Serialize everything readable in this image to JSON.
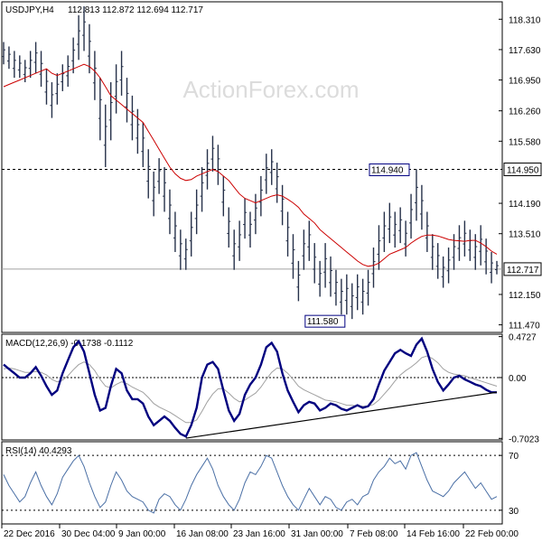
{
  "chart_data": [
    {
      "type": "line",
      "name": "price",
      "title": "USDJPY,H4",
      "ohlc_readout": "112.813 112.872 112.694 112.717",
      "watermark": "ActionForex.com",
      "ylim": [
        111.3,
        118.7
      ],
      "y_ticks": [
        "118.310",
        "117.630",
        "116.950",
        "116.260",
        "115.580",
        "114.190",
        "113.510",
        "112.150",
        "111.470"
      ],
      "x_ticks": [
        "22 Dec 2016",
        "30 Dec 04:00",
        "9 Jan 00:00",
        "16 Jan 08:00",
        "23 Jan 16:00",
        "31 Jan 00:00",
        "7 Feb 08:00",
        "14 Feb 16:00",
        "22 Feb 00:00"
      ],
      "bars": [
        {
          "x": 0,
          "high": 117.8,
          "low": 117.3
        },
        {
          "x": 1,
          "high": 117.7,
          "low": 117.2
        },
        {
          "x": 2,
          "high": 117.6,
          "low": 117.0
        },
        {
          "x": 3,
          "high": 117.5,
          "low": 117.0
        },
        {
          "x": 4,
          "high": 117.4,
          "low": 116.9
        },
        {
          "x": 5,
          "high": 117.6,
          "low": 117.0
        },
        {
          "x": 6,
          "high": 117.8,
          "low": 117.1
        },
        {
          "x": 7,
          "high": 117.6,
          "low": 116.8
        },
        {
          "x": 8,
          "high": 117.2,
          "low": 116.4
        },
        {
          "x": 9,
          "high": 116.9,
          "low": 116.1
        },
        {
          "x": 10,
          "high": 117.1,
          "low": 116.4
        },
        {
          "x": 11,
          "high": 117.3,
          "low": 116.7
        },
        {
          "x": 12,
          "high": 117.5,
          "low": 116.8
        },
        {
          "x": 13,
          "high": 117.9,
          "low": 117.1
        },
        {
          "x": 14,
          "high": 118.4,
          "low": 117.4
        },
        {
          "x": 15,
          "high": 118.6,
          "low": 117.6
        },
        {
          "x": 16,
          "high": 118.2,
          "low": 117.1
        },
        {
          "x": 17,
          "high": 117.6,
          "low": 116.5
        },
        {
          "x": 18,
          "high": 117.0,
          "low": 115.6
        },
        {
          "x": 19,
          "high": 116.4,
          "low": 115.0
        },
        {
          "x": 20,
          "high": 116.9,
          "low": 115.6
        },
        {
          "x": 21,
          "high": 117.3,
          "low": 116.2
        },
        {
          "x": 22,
          "high": 117.6,
          "low": 116.6
        },
        {
          "x": 23,
          "high": 117.0,
          "low": 116.0
        },
        {
          "x": 24,
          "high": 116.6,
          "low": 115.6
        },
        {
          "x": 25,
          "high": 116.3,
          "low": 115.3
        },
        {
          "x": 26,
          "high": 116.0,
          "low": 115.0
        },
        {
          "x": 27,
          "high": 115.4,
          "low": 114.3
        },
        {
          "x": 28,
          "high": 114.9,
          "low": 113.9
        },
        {
          "x": 29,
          "high": 115.2,
          "low": 114.4
        },
        {
          "x": 30,
          "high": 115.0,
          "low": 114.0
        },
        {
          "x": 31,
          "high": 114.5,
          "low": 113.5
        },
        {
          "x": 32,
          "high": 114.0,
          "low": 113.1
        },
        {
          "x": 33,
          "high": 113.6,
          "low": 112.7
        },
        {
          "x": 34,
          "high": 113.4,
          "low": 112.7
        },
        {
          "x": 35,
          "high": 114.0,
          "low": 113.0
        },
        {
          "x": 36,
          "high": 114.5,
          "low": 113.5
        },
        {
          "x": 37,
          "high": 115.0,
          "low": 114.0
        },
        {
          "x": 38,
          "high": 115.4,
          "low": 114.5
        },
        {
          "x": 39,
          "high": 115.7,
          "low": 114.9
        },
        {
          "x": 40,
          "high": 115.5,
          "low": 114.6
        },
        {
          "x": 41,
          "high": 114.8,
          "low": 113.9
        },
        {
          "x": 42,
          "high": 114.1,
          "low": 113.2
        },
        {
          "x": 43,
          "high": 113.6,
          "low": 112.7
        },
        {
          "x": 44,
          "high": 113.8,
          "low": 112.9
        },
        {
          "x": 45,
          "high": 114.3,
          "low": 113.4
        },
        {
          "x": 46,
          "high": 114.0,
          "low": 113.2
        },
        {
          "x": 47,
          "high": 114.4,
          "low": 113.5
        },
        {
          "x": 48,
          "high": 114.8,
          "low": 113.9
        },
        {
          "x": 49,
          "high": 115.3,
          "low": 114.4
        },
        {
          "x": 50,
          "high": 115.4,
          "low": 114.6
        },
        {
          "x": 51,
          "high": 115.1,
          "low": 114.2
        },
        {
          "x": 52,
          "high": 114.6,
          "low": 113.7
        },
        {
          "x": 53,
          "high": 114.0,
          "low": 113.0
        },
        {
          "x": 54,
          "high": 113.5,
          "low": 112.5
        },
        {
          "x": 55,
          "high": 112.9,
          "low": 112.0
        },
        {
          "x": 56,
          "high": 113.6,
          "low": 112.7
        },
        {
          "x": 57,
          "high": 113.8,
          "low": 112.9
        },
        {
          "x": 58,
          "high": 113.3,
          "low": 112.4
        },
        {
          "x": 59,
          "high": 112.9,
          "low": 112.1
        },
        {
          "x": 60,
          "high": 113.3,
          "low": 112.3
        },
        {
          "x": 61,
          "high": 113.0,
          "low": 112.1
        },
        {
          "x": 62,
          "high": 112.7,
          "low": 111.9
        },
        {
          "x": 63,
          "high": 112.5,
          "low": 111.7
        },
        {
          "x": 64,
          "high": 112.6,
          "low": 111.7
        },
        {
          "x": 65,
          "high": 112.4,
          "low": 111.6
        },
        {
          "x": 66,
          "high": 112.6,
          "low": 111.8
        },
        {
          "x": 67,
          "high": 112.5,
          "low": 111.7
        },
        {
          "x": 68,
          "high": 112.7,
          "low": 111.9
        },
        {
          "x": 69,
          "high": 113.2,
          "low": 112.3
        },
        {
          "x": 70,
          "high": 113.7,
          "low": 112.7
        },
        {
          "x": 71,
          "high": 114.0,
          "low": 113.1
        },
        {
          "x": 72,
          "high": 114.2,
          "low": 113.3
        },
        {
          "x": 73,
          "high": 114.0,
          "low": 113.2
        },
        {
          "x": 74,
          "high": 114.1,
          "low": 113.3
        },
        {
          "x": 75,
          "high": 113.8,
          "low": 113.0
        },
        {
          "x": 76,
          "high": 114.4,
          "low": 113.4
        },
        {
          "x": 77,
          "high": 114.95,
          "low": 113.8
        },
        {
          "x": 78,
          "high": 114.6,
          "low": 113.6
        },
        {
          "x": 79,
          "high": 114.0,
          "low": 113.1
        },
        {
          "x": 80,
          "high": 113.5,
          "low": 112.7
        },
        {
          "x": 81,
          "high": 113.3,
          "low": 112.5
        },
        {
          "x": 82,
          "high": 113.0,
          "low": 112.3
        },
        {
          "x": 83,
          "high": 113.2,
          "low": 112.4
        },
        {
          "x": 84,
          "high": 113.5,
          "low": 112.7
        },
        {
          "x": 85,
          "high": 113.7,
          "low": 112.9
        },
        {
          "x": 86,
          "high": 113.8,
          "low": 113.0
        },
        {
          "x": 87,
          "high": 113.6,
          "low": 112.9
        },
        {
          "x": 88,
          "high": 113.5,
          "low": 112.7
        },
        {
          "x": 89,
          "high": 113.7,
          "low": 112.8
        },
        {
          "x": 90,
          "high": 113.4,
          "low": 112.6
        },
        {
          "x": 91,
          "high": 113.1,
          "low": 112.4
        },
        {
          "x": 92,
          "high": 112.9,
          "low": 112.6
        }
      ],
      "ma": [
        116.8,
        116.85,
        116.9,
        116.95,
        117.0,
        117.05,
        117.1,
        117.15,
        117.2,
        117.1,
        117.05,
        117.1,
        117.15,
        117.2,
        117.25,
        117.3,
        117.25,
        117.15,
        117.0,
        116.8,
        116.6,
        116.5,
        116.4,
        116.3,
        116.2,
        116.1,
        116.0,
        115.8,
        115.6,
        115.4,
        115.2,
        115.0,
        114.85,
        114.75,
        114.7,
        114.72,
        114.8,
        114.85,
        114.9,
        114.95,
        114.9,
        114.8,
        114.7,
        114.55,
        114.4,
        114.3,
        114.25,
        114.2,
        114.25,
        114.3,
        114.35,
        114.38,
        114.35,
        114.28,
        114.2,
        114.1,
        113.95,
        113.85,
        113.75,
        113.6,
        113.5,
        113.4,
        113.3,
        113.2,
        113.1,
        113.0,
        112.9,
        112.82,
        112.78,
        112.8,
        112.85,
        112.95,
        113.05,
        113.1,
        113.15,
        113.2,
        113.3,
        113.38,
        113.45,
        113.48,
        113.48,
        113.46,
        113.42,
        113.38,
        113.36,
        113.35,
        113.34,
        113.36,
        113.36,
        113.3,
        113.22,
        113.12,
        113.05
      ],
      "current_price": "112.717",
      "resistance_level": "114.950",
      "annotations": [
        "114.940",
        "111.580"
      ]
    },
    {
      "type": "line",
      "name": "macd",
      "title": "MACD(12,26,9) -0.1738 -0.1112",
      "ylim": [
        -0.72,
        0.5
      ],
      "y_ticks": [
        "0.4727",
        "0.00",
        "-0.7023"
      ],
      "series": [
        {
          "values": [
            0.15,
            0.1,
            0.05,
            0.0,
            0.0,
            0.05,
            0.12,
            0.02,
            -0.1,
            -0.2,
            -0.15,
            0.05,
            0.2,
            0.35,
            0.42,
            0.3,
            0.05,
            -0.2,
            -0.38,
            -0.35,
            -0.1,
            0.1,
            0.05,
            -0.15,
            -0.25,
            -0.25,
            -0.3,
            -0.45,
            -0.55,
            -0.5,
            -0.45,
            -0.5,
            -0.58,
            -0.65,
            -0.68,
            -0.55,
            -0.35,
            0.0,
            0.15,
            0.18,
            0.1,
            -0.15,
            -0.38,
            -0.5,
            -0.42,
            -0.2,
            -0.08,
            0.0,
            0.15,
            0.35,
            0.4,
            0.3,
            0.05,
            -0.15,
            -0.28,
            -0.4,
            -0.32,
            -0.28,
            -0.3,
            -0.38,
            -0.35,
            -0.3,
            -0.32,
            -0.36,
            -0.38,
            -0.35,
            -0.32,
            -0.35,
            -0.33,
            -0.25,
            -0.08,
            0.08,
            0.18,
            0.28,
            0.32,
            0.28,
            0.25,
            0.38,
            0.45,
            0.3,
            0.1,
            -0.05,
            -0.15,
            -0.08,
            0.0,
            0.02,
            -0.02,
            -0.05,
            -0.08,
            -0.1,
            -0.14,
            -0.17,
            -0.17
          ]
        },
        {
          "values": [
            0.1,
            0.11,
            0.1,
            0.08,
            0.06,
            0.06,
            0.07,
            0.06,
            0.03,
            -0.02,
            -0.05,
            -0.03,
            0.02,
            0.09,
            0.15,
            0.18,
            0.15,
            0.08,
            -0.02,
            -0.1,
            -0.12,
            -0.08,
            -0.05,
            -0.07,
            -0.11,
            -0.14,
            -0.17,
            -0.23,
            -0.3,
            -0.34,
            -0.37,
            -0.4,
            -0.44,
            -0.48,
            -0.52,
            -0.52,
            -0.49,
            -0.39,
            -0.28,
            -0.19,
            -0.13,
            -0.13,
            -0.18,
            -0.24,
            -0.28,
            -0.26,
            -0.22,
            -0.18,
            -0.11,
            -0.02,
            0.06,
            0.11,
            0.1,
            0.05,
            -0.02,
            -0.1,
            -0.14,
            -0.17,
            -0.2,
            -0.23,
            -0.26,
            -0.27,
            -0.28,
            -0.3,
            -0.32,
            -0.32,
            -0.33,
            -0.33,
            -0.33,
            -0.31,
            -0.26,
            -0.19,
            -0.12,
            -0.04,
            0.03,
            0.08,
            0.12,
            0.17,
            0.23,
            0.25,
            0.22,
            0.17,
            0.1,
            0.06,
            0.04,
            0.03,
            0.02,
            0.0,
            -0.02,
            -0.04,
            -0.06,
            -0.08,
            -0.1
          ]
        }
      ],
      "trendline": {
        "from": [
          34,
          -0.7
        ],
        "to": [
          92,
          -0.17
        ]
      }
    },
    {
      "type": "line",
      "name": "rsi",
      "title": "RSI(14) 40.4293",
      "ylim": [
        20,
        80
      ],
      "y_ticks": [
        "70",
        "30"
      ],
      "series": [
        {
          "values": [
            56,
            48,
            42,
            36,
            40,
            50,
            58,
            48,
            40,
            34,
            42,
            54,
            60,
            66,
            70,
            62,
            50,
            40,
            32,
            36,
            48,
            58,
            52,
            44,
            40,
            38,
            36,
            30,
            28,
            38,
            42,
            40,
            34,
            30,
            38,
            48,
            56,
            62,
            68,
            60,
            48,
            40,
            34,
            30,
            38,
            50,
            58,
            56,
            62,
            70,
            68,
            58,
            48,
            40,
            34,
            30,
            38,
            46,
            40,
            34,
            40,
            38,
            32,
            30,
            36,
            38,
            34,
            40,
            42,
            52,
            58,
            62,
            68,
            64,
            66,
            60,
            70,
            72,
            62,
            52,
            44,
            42,
            40,
            44,
            50,
            54,
            58,
            52,
            46,
            50,
            44,
            38,
            40
          ]
        }
      ]
    }
  ]
}
